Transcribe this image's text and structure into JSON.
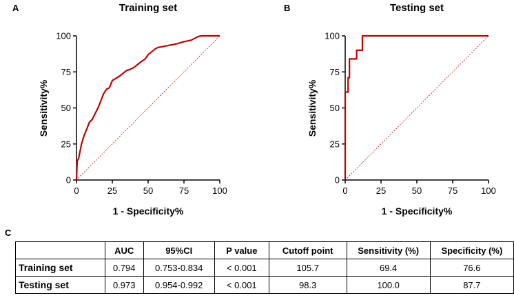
{
  "panels": {
    "a_label": "A",
    "b_label": "B",
    "c_label": "C"
  },
  "chart_data": [
    {
      "type": "line",
      "panel": "A",
      "title": "Training set",
      "xlabel": "1 - Specificity%",
      "ylabel": "Sensitivity%",
      "xlim": [
        0,
        100
      ],
      "ylim": [
        0,
        100
      ],
      "xticks": [
        0,
        25,
        50,
        75,
        100
      ],
      "yticks": [
        0,
        25,
        50,
        75,
        100
      ],
      "series": [
        {
          "name": "ROC",
          "color": "#c00000",
          "x": [
            0,
            0.5,
            1.5,
            2.5,
            3.5,
            5,
            7,
            9,
            11,
            13,
            15,
            17,
            19,
            21,
            23,
            25,
            30,
            35,
            37,
            40,
            45,
            48,
            50,
            55,
            57,
            60,
            65,
            70,
            75,
            80,
            85,
            87,
            90,
            95,
            100
          ],
          "y": [
            0,
            13,
            15,
            20,
            25,
            30,
            35,
            40,
            42,
            46,
            50,
            55,
            60,
            63,
            64,
            69,
            72,
            76,
            76.6,
            78,
            82,
            84,
            87,
            91,
            92,
            92.5,
            93.5,
            94.5,
            96,
            97,
            99.5,
            100,
            100,
            100,
            100
          ]
        },
        {
          "name": "Reference",
          "color": "#c00000",
          "x": [
            0,
            100
          ],
          "y": [
            0,
            100
          ]
        }
      ]
    },
    {
      "type": "line",
      "panel": "B",
      "title": "Testing set",
      "xlabel": "1 - Specificity%",
      "ylabel": "Sensitivity%",
      "xlim": [
        0,
        100
      ],
      "ylim": [
        0,
        100
      ],
      "xticks": [
        0,
        25,
        50,
        75,
        100
      ],
      "yticks": [
        0,
        25,
        50,
        75,
        100
      ],
      "series": [
        {
          "name": "ROC",
          "color": "#c00000",
          "x": [
            0,
            0,
            2,
            2,
            3,
            3,
            5,
            5,
            8,
            8,
            10,
            10,
            12,
            12,
            100
          ],
          "y": [
            0,
            61,
            61,
            71,
            71,
            84,
            84,
            84,
            84,
            90,
            90,
            90,
            90,
            100,
            100
          ]
        },
        {
          "name": "Reference",
          "color": "#c00000",
          "x": [
            0,
            100
          ],
          "y": [
            0,
            100
          ]
        }
      ]
    },
    {
      "type": "table",
      "panel": "C",
      "columns": [
        "",
        "AUC",
        "95%CI",
        "P value",
        "Cutoff point",
        "Sensitivity  (%)",
        "Specificity  (%)"
      ],
      "rows": [
        {
          "name": "Training set",
          "auc": "0.794",
          "ci": "0.753-0.834",
          "p": "< 0.001",
          "cutoff": "105.7",
          "sensitivity": "69.4",
          "specificity": "76.6"
        },
        {
          "name": "Testing set",
          "auc": "0.973",
          "ci": "0.954-0.992",
          "p": "< 0.001",
          "cutoff": "98.3",
          "sensitivity": "100.0",
          "specificity": "87.7"
        }
      ]
    }
  ]
}
